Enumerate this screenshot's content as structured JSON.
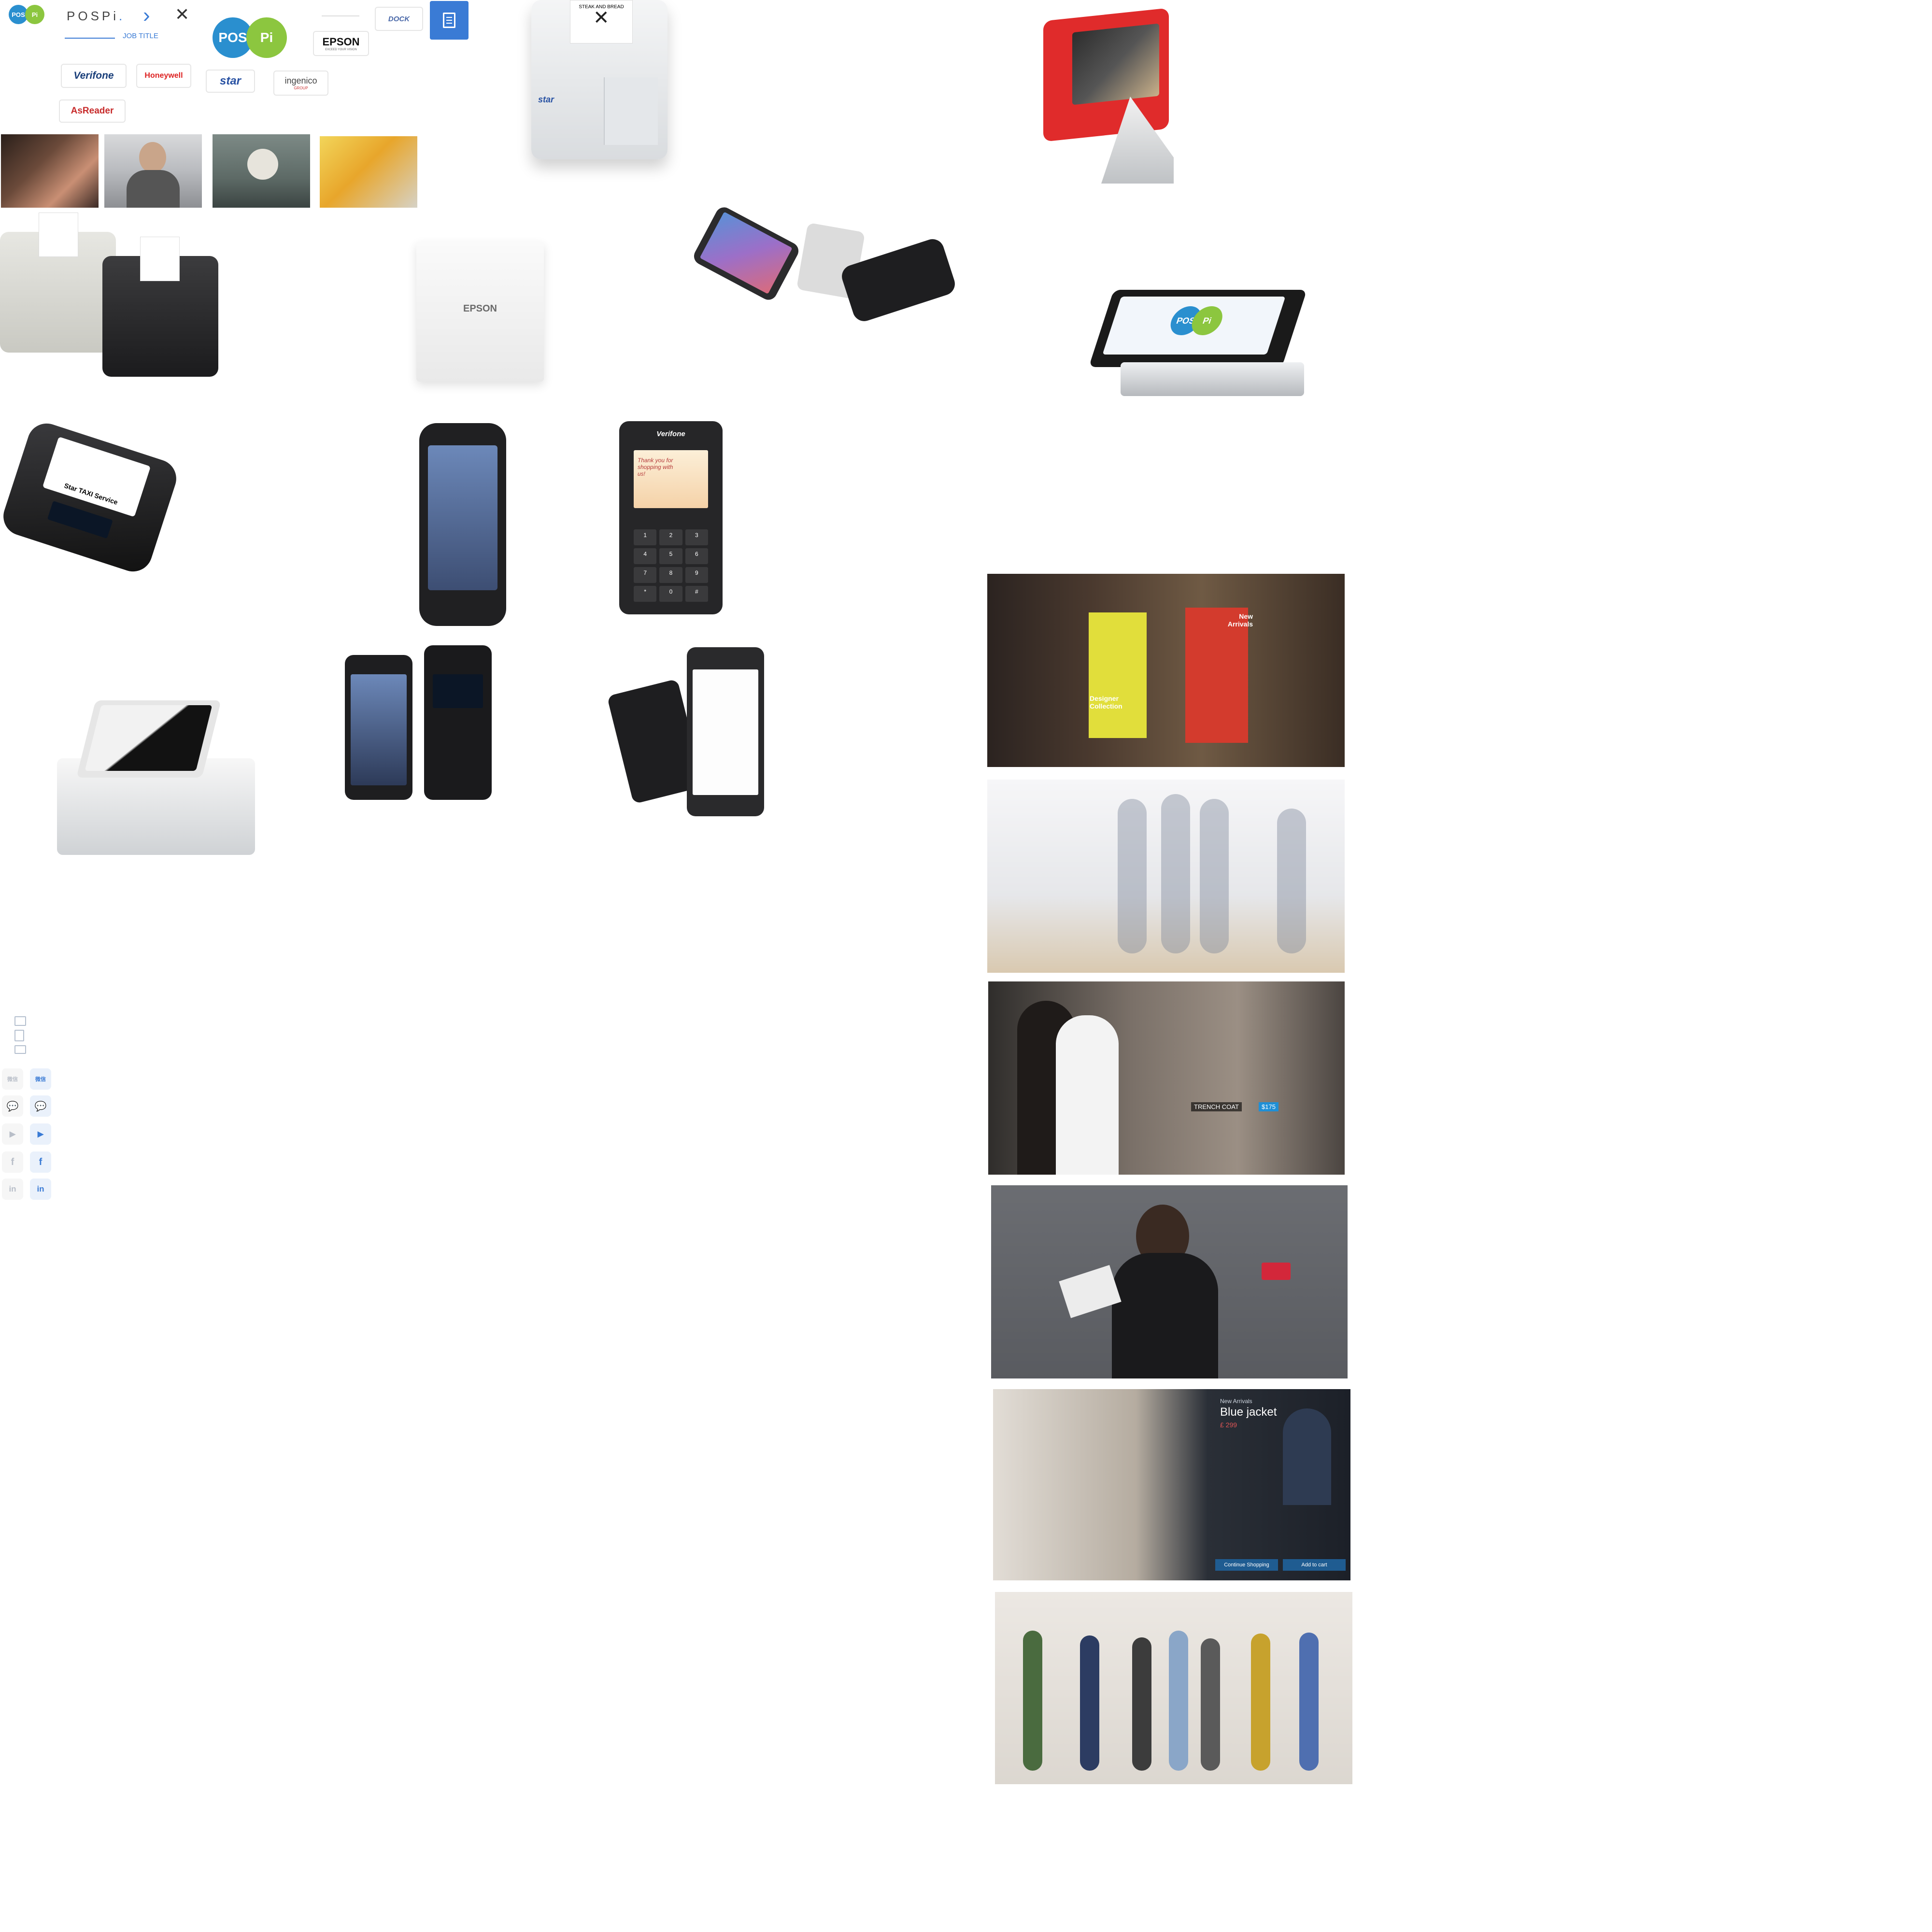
{
  "header": {
    "brand_text": "POSPi",
    "brand_dot": ".",
    "job_title_label": "JOB TITLE",
    "logo_pos_text": "POS",
    "logo_pi_text": "Pi",
    "big_logo_pos_text": "POS",
    "big_logo_pi_text": "Pi",
    "next_glyph": "›",
    "close_glyph": "✕"
  },
  "partner_logos": {
    "verifone": "Verifone",
    "honeywell": "Honeywell",
    "star": "star",
    "ingenico": "ingenico",
    "ingenico_sub": "GROUP",
    "asreader": "AsReader",
    "epson": "EPSON",
    "epson_tag": "EXCEED YOUR VISION",
    "dock": "DOCK"
  },
  "products": {
    "printer_top_receipt": "STEAK AND BREAD",
    "printer_top_brand": "star",
    "epson_printer_label": "EPSON",
    "mobile_printer_receipt": "Star TAXI Service",
    "verifone_brand": "Verifone",
    "verifone_screen_text": "Thank you for shopping with us!",
    "pospi_tablet_pos": "POS",
    "pospi_tablet_pi": "Pi"
  },
  "keypad": {
    "keys": [
      "1",
      "2",
      "3",
      "4",
      "5",
      "6",
      "7",
      "8",
      "9",
      "*",
      "0",
      "#"
    ]
  },
  "retail": {
    "store_new_arrivals": "New Arrivals",
    "store_designer": "Designer Collection",
    "trench_coat": "TRENCH COAT",
    "trench_price": "$175",
    "kiosk_new_arrivals": "New Arrivals",
    "kiosk_title": "Blue jacket",
    "kiosk_price": "£ 299",
    "kiosk_continue": "Continue Shopping",
    "kiosk_add_cart": "Add to cart"
  },
  "sidebar": {
    "social": [
      {
        "id": "wechat",
        "label": "微信"
      },
      {
        "id": "chat",
        "label": "💬"
      },
      {
        "id": "youtube",
        "label": "▶"
      },
      {
        "id": "facebook",
        "label": "f"
      },
      {
        "id": "linkedin",
        "label": "in"
      }
    ]
  },
  "colors": {
    "accent": "#3a7bd5",
    "pos_blue": "#2a8fcf",
    "pi_green": "#8cc63f",
    "red_device": "#e02b2b"
  }
}
